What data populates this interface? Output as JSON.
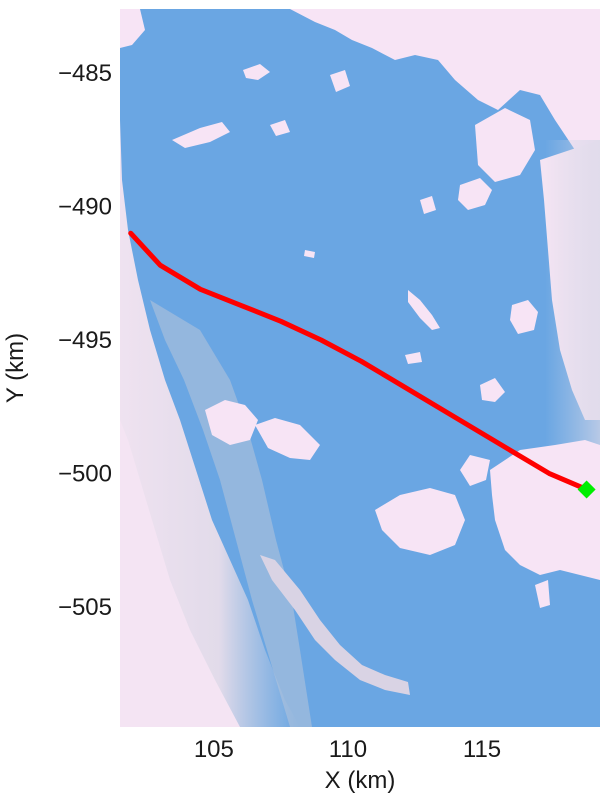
{
  "chart_data": {
    "type": "map",
    "xlabel": "X (km)",
    "ylabel": "Y (km)",
    "xlim": [
      101.5,
      119.4
    ],
    "ylim": [
      -509.5,
      -482.6
    ],
    "x_ticks": [
      {
        "value": 105,
        "label": "105"
      },
      {
        "value": 110,
        "label": "110"
      },
      {
        "value": 115,
        "label": "115"
      }
    ],
    "y_ticks": [
      {
        "value": -485,
        "label": "−485"
      },
      {
        "value": -490,
        "label": "−490"
      },
      {
        "value": -495,
        "label": "−495"
      },
      {
        "value": -500,
        "label": "−500"
      },
      {
        "value": -505,
        "label": "−505"
      }
    ],
    "colors": {
      "water": "#6aa6e3",
      "ice": "#f7e4f5",
      "transition": "#b9c6dc",
      "track": "#ff0000",
      "endpoint": "#00ee00"
    },
    "track": [
      {
        "x": 101.9,
        "y": -491.0
      },
      {
        "x": 103.0,
        "y": -492.2
      },
      {
        "x": 104.5,
        "y": -493.1
      },
      {
        "x": 106.0,
        "y": -493.7
      },
      {
        "x": 107.5,
        "y": -494.3
      },
      {
        "x": 109.0,
        "y": -495.0
      },
      {
        "x": 110.5,
        "y": -495.8
      },
      {
        "x": 112.0,
        "y": -496.7
      },
      {
        "x": 113.5,
        "y": -497.6
      },
      {
        "x": 114.5,
        "y": -498.2
      },
      {
        "x": 116.0,
        "y": -499.1
      },
      {
        "x": 117.5,
        "y": -500.0
      },
      {
        "x": 118.9,
        "y": -500.6
      }
    ],
    "endpoint": {
      "x": 118.9,
      "y": -500.6
    }
  }
}
